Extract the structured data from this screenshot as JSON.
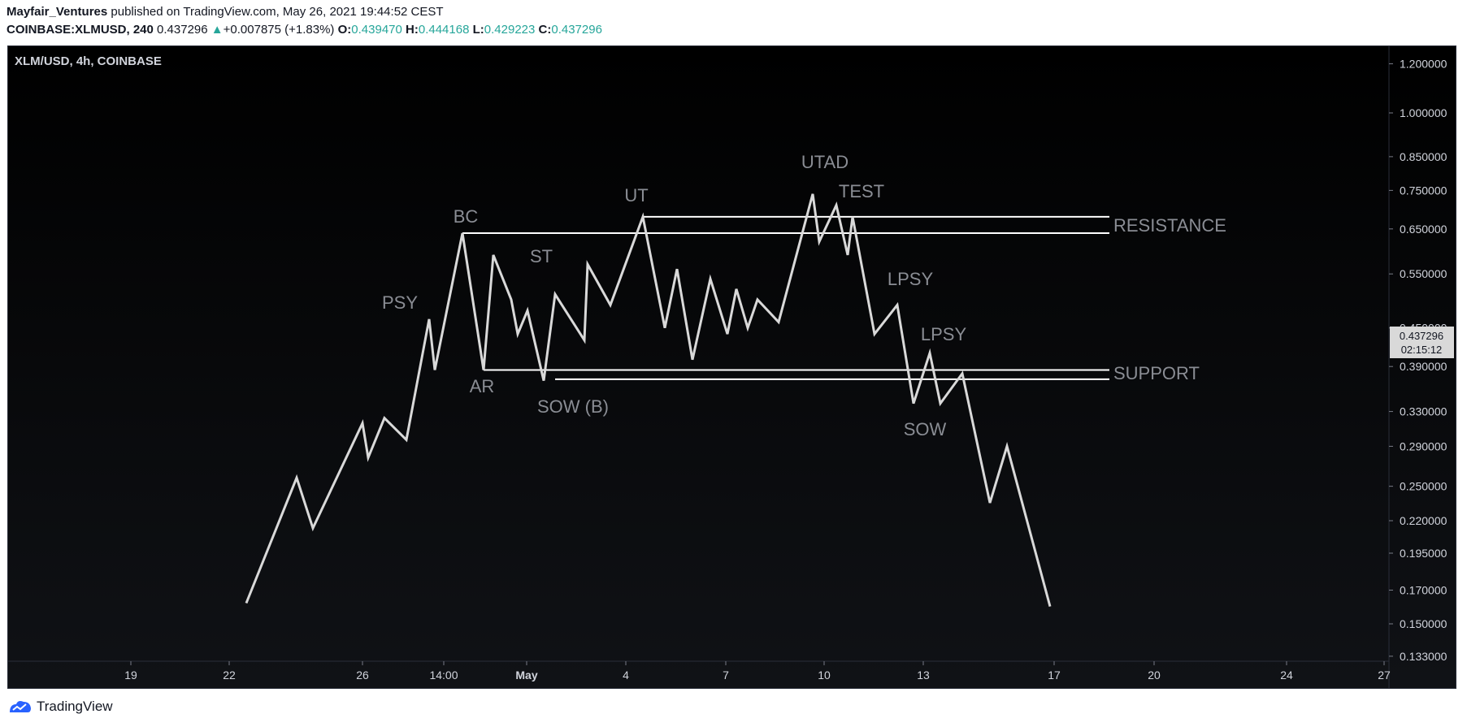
{
  "header": {
    "author": "Mayfair_Ventures",
    "published": " published on TradingView.com, May 26, 2021 19:44:52 CEST",
    "symbol": "COINBASE:XLMUSD, 240",
    "last": "0.437296",
    "change": "+0.007875 (+1.83%)",
    "o_label": "O:",
    "o_val": "0.439470",
    "h_label": "H:",
    "h_val": "0.444168",
    "l_label": "L:",
    "l_val": "0.429223",
    "c_label": "C:",
    "c_val": "0.437296"
  },
  "chart_title": "XLM/USD, 4h, COINBASE",
  "price_axis": [
    "1.200000",
    "1.000000",
    "0.850000",
    "0.750000",
    "0.650000",
    "0.550000",
    "0.450000",
    "0.390000",
    "0.330000",
    "0.290000",
    "0.250000",
    "0.220000",
    "0.195000",
    "0.170000",
    "0.150000",
    "0.133000"
  ],
  "time_axis": [
    "19",
    "22",
    "26",
    "14:00",
    "May",
    "4",
    "7",
    "10",
    "13",
    "17",
    "20",
    "24",
    "27"
  ],
  "price_label": {
    "price": "0.437296",
    "countdown": "02:15:12"
  },
  "footer": {
    "brand": "TradingView"
  },
  "colors": {
    "line": "#d9d9d9",
    "label": "#8a8d94",
    "accent_up": "#26a69a",
    "background": "#000000"
  },
  "chart_data": {
    "type": "line",
    "title": "XLM/USD, 4h, COINBASE",
    "series": [
      {
        "values": [
          0.162,
          0.258,
          0.214,
          0.316,
          0.278,
          0.322,
          0.297,
          0.465,
          0.385,
          0.64,
          0.385,
          0.59,
          0.5,
          0.44,
          0.48,
          0.37,
          0.51,
          0.43,
          0.57,
          0.49,
          0.68,
          0.45,
          0.56,
          0.4,
          0.54,
          0.44,
          0.52,
          0.45,
          0.5,
          0.46,
          0.74,
          0.62,
          0.71,
          0.59,
          0.68,
          0.44,
          0.49,
          0.34,
          0.41,
          0.34,
          0.38,
          0.235,
          0.29,
          0.16
        ]
      }
    ],
    "lines": {
      "resistance_upper": 0.68,
      "resistance_lower": 0.64,
      "support_upper": 0.385,
      "support_lower": 0.372
    },
    "annotations": [
      "PSY",
      "BC",
      "AR",
      "ST",
      "SOW (B)",
      "UT",
      "UTAD",
      "TEST",
      "LPSY",
      "LPSY",
      "SOW",
      "RESISTANCE",
      "SUPPORT"
    ],
    "ylim": [
      0.13,
      1.25
    ]
  }
}
